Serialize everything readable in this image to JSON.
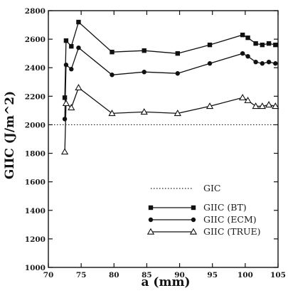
{
  "chart_data": {
    "type": "line",
    "xlabel": "a (mm)",
    "ylabel": "GIIC (J/m^2)",
    "xlim": [
      70,
      105
    ],
    "ylim": [
      1000,
      2800
    ],
    "xticks": [
      "70",
      "75",
      "80",
      "85",
      "90",
      "95",
      "100",
      "105"
    ],
    "yticks": [
      "1000",
      "1200",
      "1400",
      "1600",
      "1800",
      "2000",
      "2200",
      "2400",
      "2600",
      "2800"
    ],
    "grid": false,
    "legend_position": "bottom-right",
    "reference_line": {
      "name": "GIC",
      "y": 2000,
      "style": "dotted"
    },
    "series": [
      {
        "name": "GIIC (BT)",
        "marker": "square",
        "x": [
          72.5,
          72.7,
          73.5,
          74.6,
          79.7,
          84.6,
          89.7,
          94.6,
          99.6,
          100.4,
          101.6,
          102.6,
          103.6,
          104.6
        ],
        "y": [
          2190,
          2590,
          2550,
          2720,
          2510,
          2520,
          2500,
          2560,
          2630,
          2610,
          2570,
          2560,
          2570,
          2560
        ]
      },
      {
        "name": "GIIC (ECM)",
        "marker": "circle",
        "x": [
          72.5,
          72.7,
          73.5,
          74.6,
          79.7,
          84.6,
          89.7,
          94.6,
          99.6,
          100.4,
          101.6,
          102.6,
          103.6,
          104.6
        ],
        "y": [
          2040,
          2420,
          2390,
          2540,
          2350,
          2370,
          2360,
          2430,
          2500,
          2480,
          2440,
          2430,
          2440,
          2430
        ]
      },
      {
        "name": "GIIC (TRUE)",
        "marker": "triangle",
        "x": [
          72.5,
          72.7,
          73.5,
          74.6,
          79.7,
          84.6,
          89.7,
          94.6,
          99.6,
          100.4,
          101.6,
          102.6,
          103.6,
          104.6
        ],
        "y": [
          1810,
          2150,
          2120,
          2260,
          2080,
          2090,
          2080,
          2130,
          2190,
          2170,
          2130,
          2130,
          2140,
          2130
        ]
      }
    ]
  }
}
